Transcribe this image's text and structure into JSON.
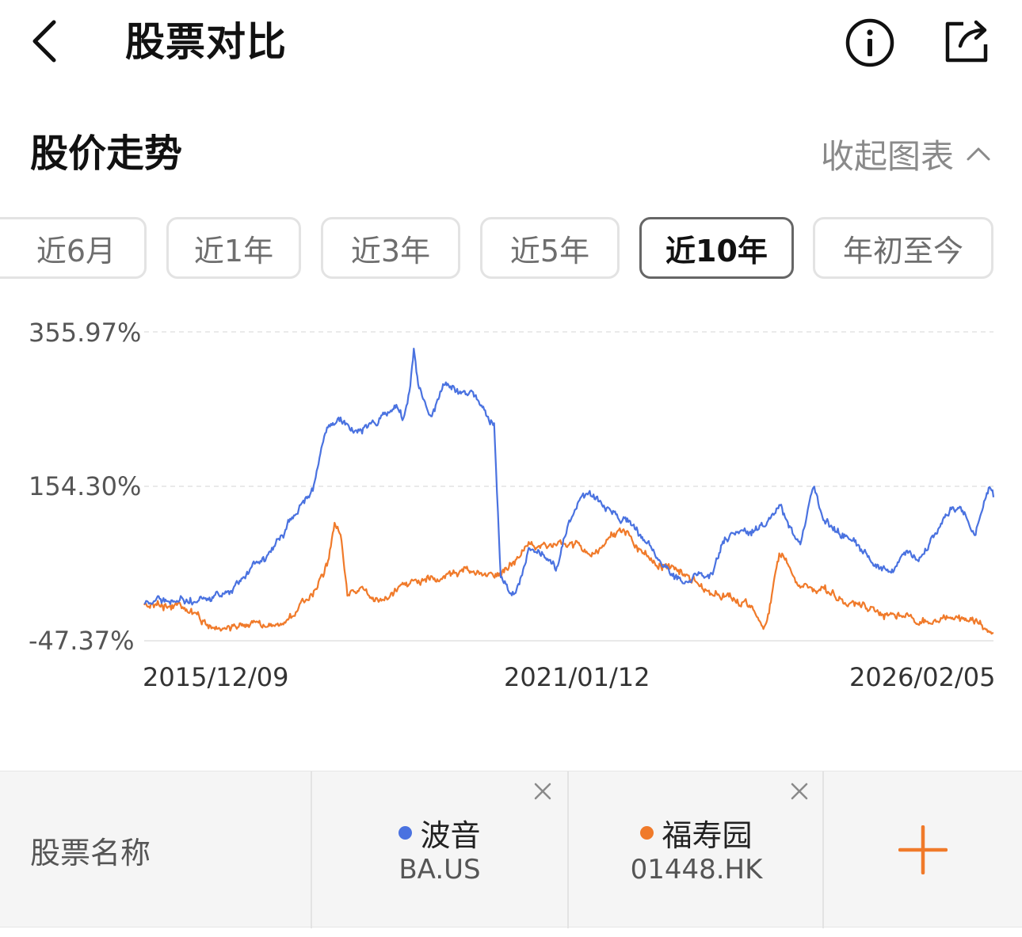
{
  "header": {
    "title": "股票对比",
    "back_icon": "chevron-left-icon",
    "info_icon": "info-icon",
    "share_icon": "share-icon"
  },
  "section": {
    "title": "股价走势",
    "collapse_label": "收起图表",
    "collapse_icon": "chevron-up-icon"
  },
  "tabs": [
    {
      "label": "近6月",
      "active": false
    },
    {
      "label": "近1年",
      "active": false
    },
    {
      "label": "近3年",
      "active": false
    },
    {
      "label": "近5年",
      "active": false
    },
    {
      "label": "近10年",
      "active": true
    },
    {
      "label": "年初至今",
      "active": false
    }
  ],
  "chart_data": {
    "type": "line",
    "y_tick_labels": [
      "355.97%",
      "154.30%",
      "-47.37%"
    ],
    "y_ticks": [
      355.97,
      154.3,
      -47.37
    ],
    "ylim": [
      -47.37,
      355.97
    ],
    "x_tick_labels": [
      "2015/12/09",
      "2021/01/12",
      "2026/02/05"
    ],
    "xlim": [
      "2015/12/09",
      "2026/02/05"
    ],
    "grid": "horizontal dashed",
    "series": [
      {
        "color": "#4a72e0",
        "points": [
          [
            "2015/12/09",
            -3
          ],
          [
            "2016/03/15",
            5
          ],
          [
            "2016/06/15",
            6
          ],
          [
            "2016/09/15",
            8
          ],
          [
            "2016/12/15",
            22
          ],
          [
            "2017/03/15",
            45
          ],
          [
            "2017/06/15",
            70
          ],
          [
            "2017/09/15",
            115
          ],
          [
            "2017/12/15",
            155
          ],
          [
            "2018/02/15",
            240
          ],
          [
            "2018/04/15",
            248
          ],
          [
            "2018/06/15",
            225
          ],
          [
            "2018/09/15",
            238
          ],
          [
            "2018/12/15",
            262
          ],
          [
            "2019/01/15",
            240
          ],
          [
            "2019/02/10",
            280
          ],
          [
            "2019/03/01",
            330
          ],
          [
            "2019/03/20",
            285
          ],
          [
            "2019/05/15",
            245
          ],
          [
            "2019/07/15",
            288
          ],
          [
            "2019/09/15",
            275
          ],
          [
            "2019/11/15",
            278
          ],
          [
            "2020/01/15",
            245
          ],
          [
            "2020/02/15",
            240
          ],
          [
            "2020/03/15",
            38
          ],
          [
            "2020/04/15",
            20
          ],
          [
            "2020/05/15",
            15
          ],
          [
            "2020/07/15",
            70
          ],
          [
            "2020/09/15",
            65
          ],
          [
            "2020/11/15",
            50
          ],
          [
            "2021/01/12",
            110
          ],
          [
            "2021/03/10",
            152
          ],
          [
            "2021/05/15",
            135
          ],
          [
            "2021/07/15",
            120
          ],
          [
            "2021/09/15",
            110
          ],
          [
            "2021/11/15",
            90
          ],
          [
            "2022/01/15",
            68
          ],
          [
            "2022/03/15",
            45
          ],
          [
            "2022/05/15",
            27
          ],
          [
            "2022/07/15",
            40
          ],
          [
            "2022/09/15",
            40
          ],
          [
            "2022/11/15",
            80
          ],
          [
            "2023/01/15",
            100
          ],
          [
            "2023/03/15",
            95
          ],
          [
            "2023/05/15",
            110
          ],
          [
            "2023/07/15",
            130
          ],
          [
            "2023/09/15",
            90
          ],
          [
            "2023/10/15",
            78
          ],
          [
            "2023/12/15",
            158
          ],
          [
            "2024/01/15",
            115
          ],
          [
            "2024/03/15",
            100
          ],
          [
            "2024/05/15",
            85
          ],
          [
            "2024/07/15",
            72
          ],
          [
            "2024/09/15",
            55
          ],
          [
            "2024/11/15",
            48
          ],
          [
            "2025/01/15",
            70
          ],
          [
            "2025/03/15",
            55
          ],
          [
            "2025/05/15",
            90
          ],
          [
            "2025/07/15",
            123
          ],
          [
            "2025/09/15",
            125
          ],
          [
            "2025/11/15",
            90
          ],
          [
            "2026/01/15",
            150
          ],
          [
            "2026/02/05",
            140
          ]
        ]
      },
      {
        "color": "#f07a2a",
        "points": [
          [
            "2015/12/09",
            0
          ],
          [
            "2016/03/15",
            0
          ],
          [
            "2016/06/15",
            -5
          ],
          [
            "2016/09/15",
            -27
          ],
          [
            "2016/12/15",
            -30
          ],
          [
            "2017/03/15",
            -25
          ],
          [
            "2017/06/15",
            -30
          ],
          [
            "2017/09/15",
            -15
          ],
          [
            "2017/12/15",
            15
          ],
          [
            "2018/02/15",
            50
          ],
          [
            "2018/03/20",
            105
          ],
          [
            "2018/04/15",
            90
          ],
          [
            "2018/05/15",
            15
          ],
          [
            "2018/07/15",
            20
          ],
          [
            "2018/10/15",
            5
          ],
          [
            "2019/01/15",
            25
          ],
          [
            "2019/04/15",
            30
          ],
          [
            "2019/07/15",
            40
          ],
          [
            "2019/10/15",
            45
          ],
          [
            "2020/01/15",
            40
          ],
          [
            "2020/04/15",
            48
          ],
          [
            "2020/07/15",
            80
          ],
          [
            "2020/10/15",
            75
          ],
          [
            "2021/01/12",
            78
          ],
          [
            "2021/04/15",
            70
          ],
          [
            "2021/07/15",
            90
          ],
          [
            "2021/09/15",
            96
          ],
          [
            "2021/12/15",
            60
          ],
          [
            "2022/03/15",
            45
          ],
          [
            "2022/06/15",
            40
          ],
          [
            "2022/09/15",
            15
          ],
          [
            "2022/12/15",
            10
          ],
          [
            "2023/03/15",
            -5
          ],
          [
            "2023/05/15",
            -30
          ],
          [
            "2023/07/15",
            65
          ],
          [
            "2023/10/15",
            25
          ],
          [
            "2024/01/15",
            20
          ],
          [
            "2024/04/15",
            5
          ],
          [
            "2024/07/15",
            -5
          ],
          [
            "2024/10/15",
            -15
          ],
          [
            "2025/01/15",
            -15
          ],
          [
            "2025/04/15",
            -22
          ],
          [
            "2025/07/15",
            -15
          ],
          [
            "2025/10/15",
            -22
          ],
          [
            "2026/01/15",
            -32
          ],
          [
            "2026/02/05",
            -37
          ]
        ]
      }
    ]
  },
  "compare": {
    "label": "股票名称",
    "close_icon": "close-icon",
    "add_icon": "plus-icon",
    "stocks": [
      {
        "name": "波音",
        "code": "BA.US",
        "color": "#4a72e0"
      },
      {
        "name": "福寿园",
        "code": "01448.HK",
        "color": "#f07a2a"
      }
    ],
    "add_color": "#f07a2a"
  }
}
